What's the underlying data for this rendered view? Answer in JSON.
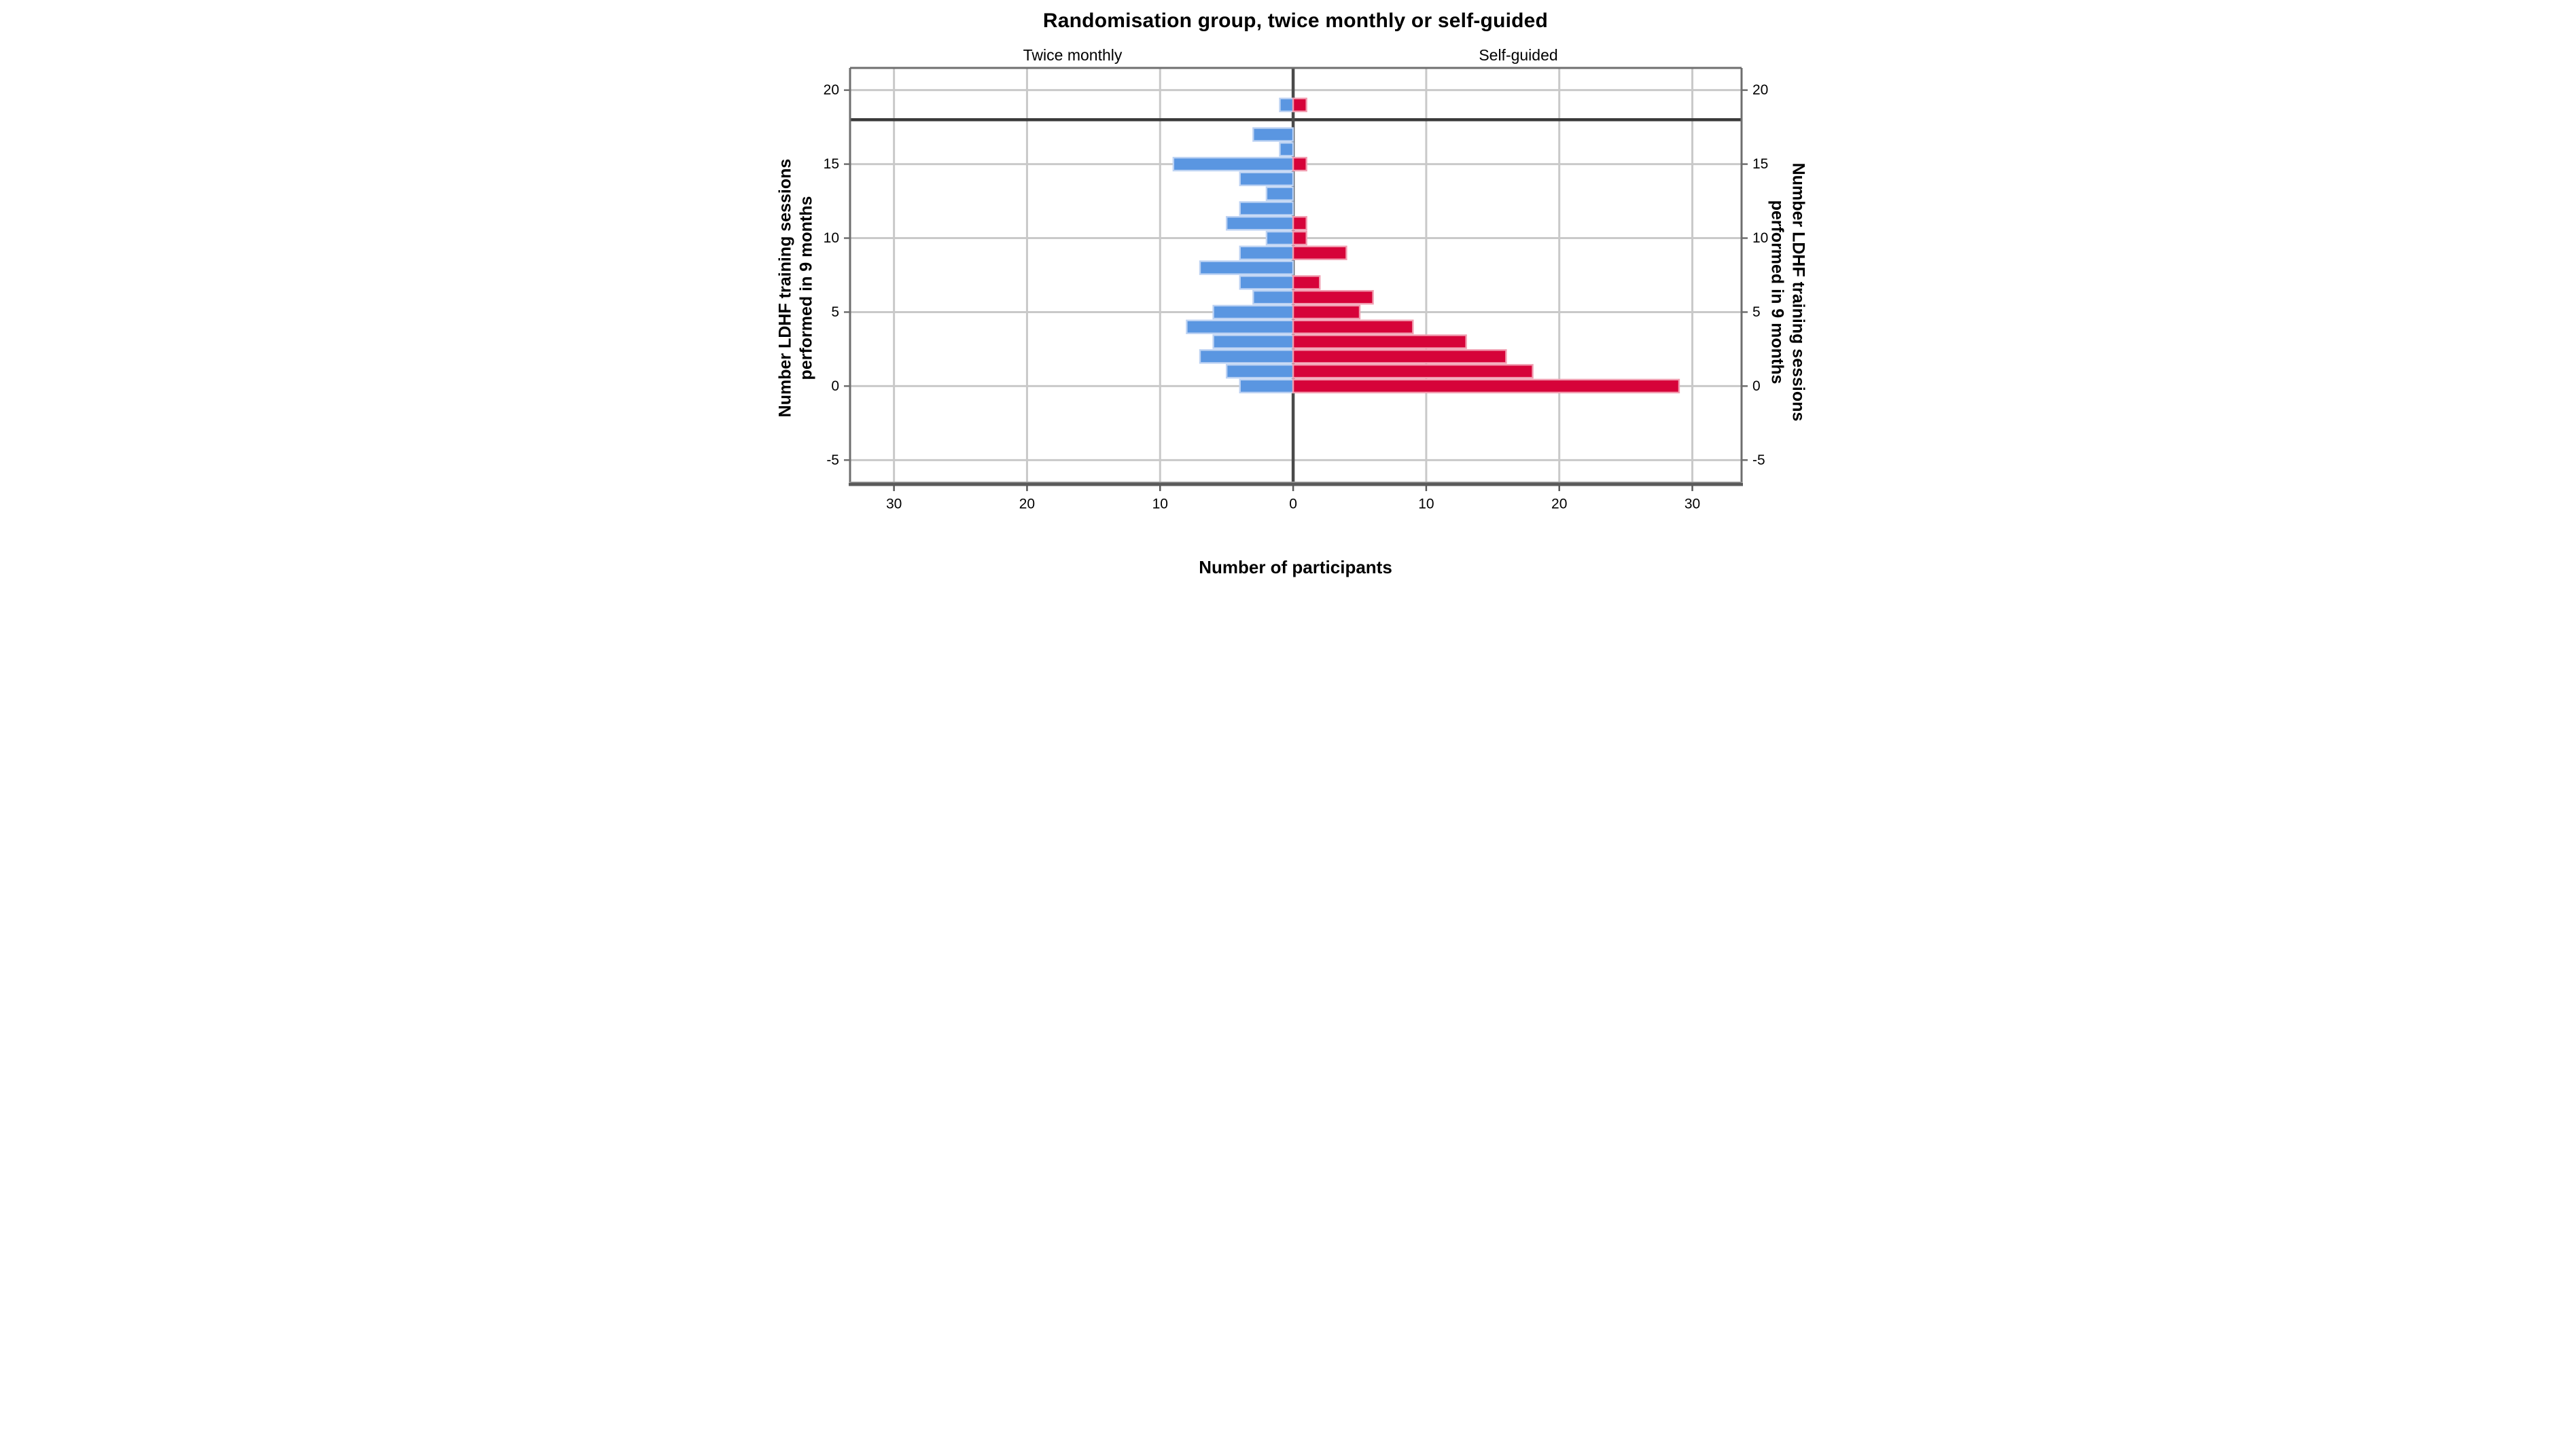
{
  "chart_data": {
    "type": "bar",
    "variant": "population_pyramid",
    "title": "Randomisation group, twice monthly or self-guided",
    "xlabel": "Number of participants",
    "ylabel_lines": [
      "Number LDHF training sessions",
      "performed in 9 months"
    ],
    "panels": [
      {
        "label": "Twice monthly",
        "side": "left"
      },
      {
        "label": "Self-guided",
        "side": "right"
      }
    ],
    "categories": [
      0,
      1,
      2,
      3,
      4,
      5,
      6,
      7,
      8,
      9,
      10,
      11,
      12,
      13,
      14,
      15,
      16,
      17,
      18,
      19
    ],
    "series": [
      {
        "name": "Twice monthly",
        "side": "left",
        "color": "#5A96E1",
        "edge_color": "#BCD2F3",
        "values": [
          4,
          5,
          7,
          6,
          8,
          6,
          3,
          4,
          7,
          4,
          2,
          5,
          4,
          2,
          4,
          9,
          1,
          3,
          0,
          1
        ]
      },
      {
        "name": "Self-guided",
        "side": "right",
        "color": "#D60339",
        "edge_color": "#F19DB0",
        "values": [
          29,
          18,
          16,
          13,
          9,
          5,
          6,
          2,
          0,
          4,
          1,
          1,
          0,
          0,
          0,
          1,
          0,
          0,
          0,
          1
        ]
      }
    ],
    "x_tick_labels": [
      "30",
      "20",
      "10",
      "0",
      "10",
      "20",
      "30"
    ],
    "x_tick_units": [
      -30,
      -20,
      -10,
      0,
      10,
      20,
      30
    ],
    "y_ticks": [
      20,
      15,
      10,
      5,
      0,
      -5
    ],
    "xlim": [
      -33.3,
      33.7
    ],
    "ylim": [
      -6.5,
      21.5
    ],
    "reference_line_y": 18,
    "grid": true,
    "legend": false,
    "colors": {
      "grid": "#C9C9C9",
      "axis_border": "#6E6E6E",
      "axis_bottom": "#5A5A5A",
      "zero_line": "#4A4A4A",
      "reference_line": "#3A3A3A",
      "text": "#000000",
      "background": "#FFFFFF"
    }
  }
}
